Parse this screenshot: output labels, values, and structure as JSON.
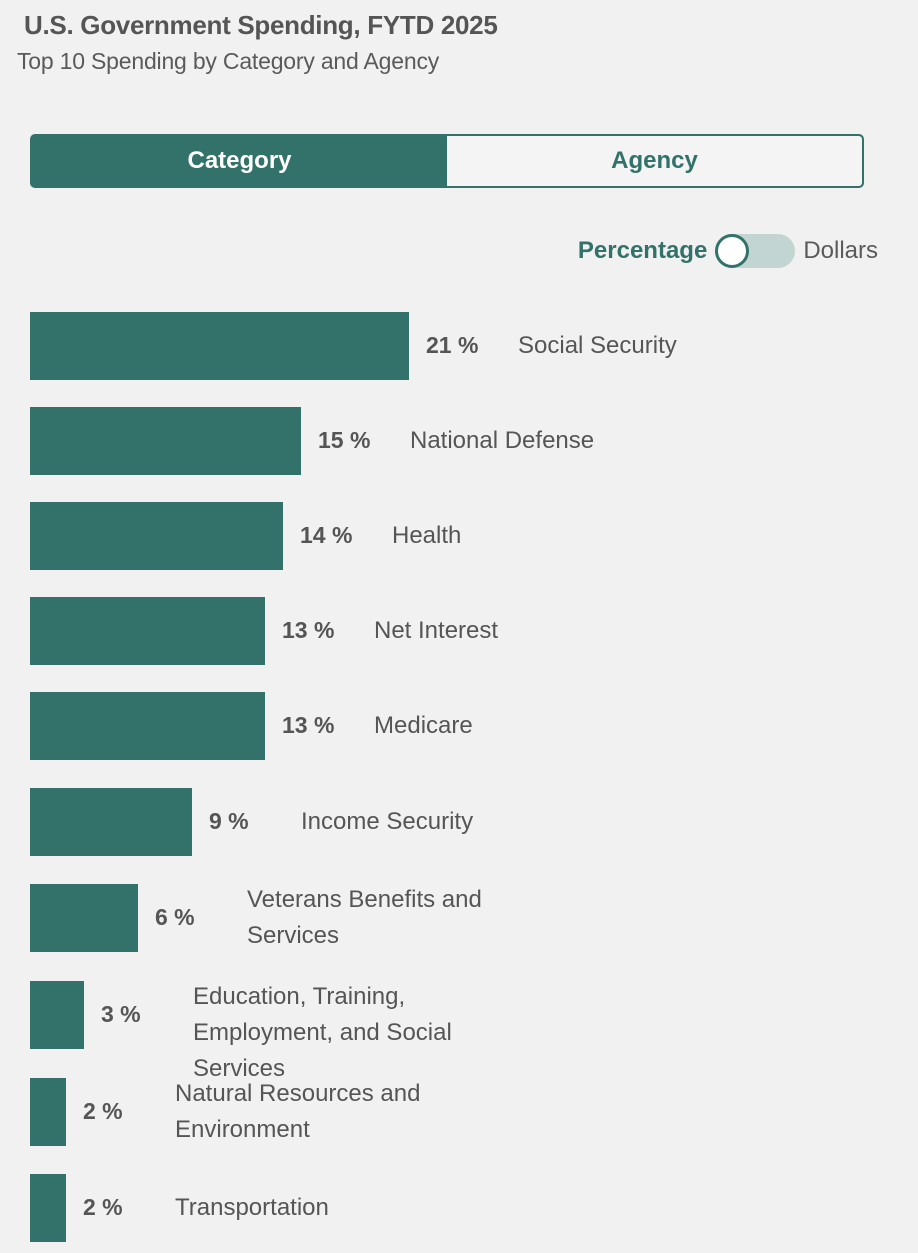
{
  "header": {
    "title": "U.S. Government Spending, FYTD 2025",
    "subtitle": "Top 10 Spending by Category and Agency"
  },
  "tabs": [
    {
      "label": "Category",
      "active": true
    },
    {
      "label": "Agency",
      "active": false
    }
  ],
  "toggle": {
    "left_label": "Percentage",
    "right_label": "Dollars",
    "selected": "Percentage"
  },
  "colors": {
    "accent": "#33726a",
    "background": "#f1f1f1",
    "toggle_track": "#c3d5d2"
  },
  "chart_data": {
    "type": "bar",
    "orientation": "horizontal",
    "categories": [
      "Social Security",
      "National Defense",
      "Health",
      "Net Interest",
      "Medicare",
      "Income Security",
      "Veterans Benefits and Services",
      "Education, Training, Employment, and Social Services",
      "Natural Resources and Environment",
      "Transportation"
    ],
    "values": [
      21,
      15,
      14,
      13,
      13,
      9,
      6,
      3,
      2,
      2
    ],
    "labels": [
      "21 %",
      "15 %",
      "14 %",
      "13 %",
      "13 %",
      "9 %",
      "6 %",
      "3 %",
      "2 %",
      "2 %"
    ],
    "unit": "%",
    "grid": false
  }
}
